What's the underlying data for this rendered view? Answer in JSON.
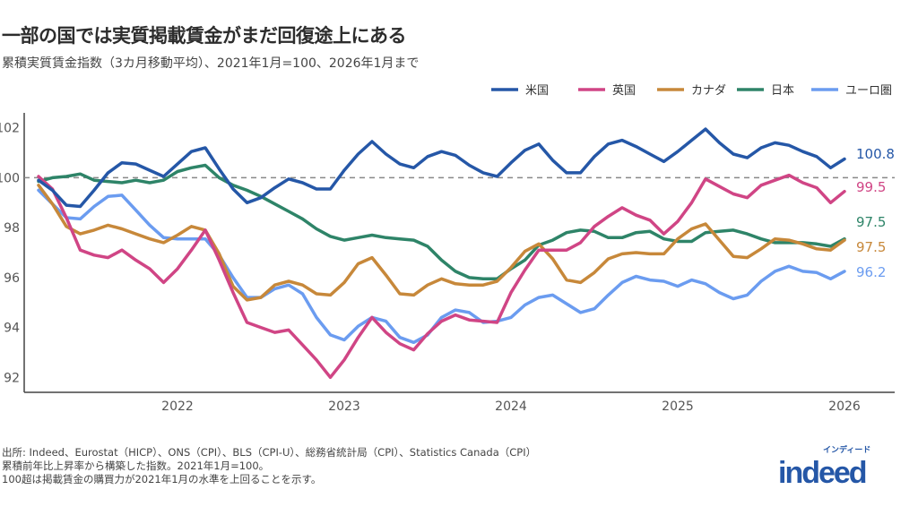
{
  "title": "一部の国では実質掲載賃金がまだ回復途上にある",
  "subtitle": "累積実質賃金指数（3カ月移動平均）、2021年1月=100、2026年1月まで",
  "notes": [
    "出所: Indeed、Eurostat（HICP）、ONS（CPI）、BLS（CPI-U）、総務省統計局（CPI）、Statistics Canada（CPI）",
    "累積前年比上昇率から構築した指数。2021年1月=100。",
    "100超は掲載賃金の購買力が2021年1月の水準を上回ることを示す。"
  ],
  "logo": {
    "word": "indeed",
    "kana": "インディード"
  },
  "chart_data": {
    "type": "line",
    "title": "一部の国では実質掲載賃金がまだ回復途上にある",
    "xlabel": "",
    "ylabel": "",
    "ylim": [
      91.4,
      102.6
    ],
    "xlim": [
      "2021-01",
      "2026-04"
    ],
    "yticks": [
      92,
      94,
      96,
      98,
      100,
      102
    ],
    "xticks": [
      {
        "label": "2022",
        "date": "2022-01"
      },
      {
        "label": "2023",
        "date": "2023-01"
      },
      {
        "label": "2024",
        "date": "2024-01"
      },
      {
        "label": "2025",
        "date": "2025-01"
      },
      {
        "label": "2026",
        "date": "2026-01"
      }
    ],
    "reference_line": {
      "y": 100,
      "style": "dashed",
      "color": "#888888"
    },
    "grid": false,
    "legend": "top-right",
    "x": [
      "2021-03",
      "2021-04",
      "2021-05",
      "2021-06",
      "2021-07",
      "2021-08",
      "2021-09",
      "2021-10",
      "2021-11",
      "2021-12",
      "2022-01",
      "2022-02",
      "2022-03",
      "2022-04",
      "2022-05",
      "2022-06",
      "2022-07",
      "2022-08",
      "2022-09",
      "2022-10",
      "2022-11",
      "2022-12",
      "2023-01",
      "2023-02",
      "2023-03",
      "2023-04",
      "2023-05",
      "2023-06",
      "2023-07",
      "2023-08",
      "2023-09",
      "2023-10",
      "2023-11",
      "2023-12",
      "2024-01",
      "2024-02",
      "2024-03",
      "2024-04",
      "2024-05",
      "2024-06",
      "2024-07",
      "2024-08",
      "2024-09",
      "2024-10",
      "2024-11",
      "2024-12",
      "2025-01",
      "2025-02",
      "2025-03",
      "2025-04",
      "2025-05",
      "2025-06",
      "2025-07",
      "2025-08",
      "2025-09",
      "2025-10",
      "2025-11",
      "2025-12",
      "2026-01"
    ],
    "series": [
      {
        "name": "米国",
        "color": "#2557a7",
        "end_label": "100.8",
        "values": [
          99.9,
          99.5,
          98.9,
          98.85,
          99.5,
          100.2,
          100.6,
          100.55,
          100.3,
          100.05,
          100.55,
          101.05,
          101.2,
          100.35,
          99.55,
          99.0,
          99.2,
          99.6,
          99.95,
          99.8,
          99.55,
          99.55,
          100.3,
          100.95,
          101.45,
          100.95,
          100.55,
          100.4,
          100.85,
          101.05,
          100.9,
          100.5,
          100.2,
          100.05,
          100.6,
          101.1,
          101.35,
          100.7,
          100.2,
          100.2,
          100.85,
          101.35,
          101.5,
          101.25,
          100.95,
          100.65,
          101.05,
          101.5,
          101.95,
          101.4,
          100.95,
          100.8,
          101.2,
          101.4,
          101.3,
          101.05,
          100.85,
          100.4,
          100.75
        ]
      },
      {
        "name": "英国",
        "color": "#d04585",
        "end_label": "99.5",
        "values": [
          100.05,
          99.55,
          98.4,
          97.1,
          96.9,
          96.8,
          97.1,
          96.7,
          96.35,
          95.8,
          96.35,
          97.1,
          97.9,
          96.7,
          95.4,
          94.2,
          94.0,
          93.8,
          93.9,
          93.3,
          92.7,
          92.0,
          92.7,
          93.6,
          94.4,
          93.8,
          93.35,
          93.1,
          93.75,
          94.25,
          94.5,
          94.3,
          94.25,
          94.2,
          95.4,
          96.3,
          97.1,
          97.1,
          97.1,
          97.4,
          98.05,
          98.45,
          98.8,
          98.5,
          98.3,
          97.75,
          98.25,
          99.0,
          99.95,
          99.65,
          99.35,
          99.2,
          99.7,
          99.9,
          100.1,
          99.8,
          99.6,
          99.0,
          99.45
        ]
      },
      {
        "name": "カナダ",
        "color": "#c7883a",
        "end_label": "97.5",
        "values": [
          99.7,
          98.95,
          98.05,
          97.75,
          97.9,
          98.1,
          97.95,
          97.75,
          97.55,
          97.4,
          97.7,
          98.05,
          97.9,
          96.95,
          95.65,
          95.1,
          95.2,
          95.7,
          95.85,
          95.7,
          95.35,
          95.3,
          95.8,
          96.55,
          96.8,
          96.1,
          95.35,
          95.3,
          95.7,
          95.95,
          95.75,
          95.7,
          95.7,
          95.85,
          96.4,
          97.05,
          97.35,
          96.75,
          95.9,
          95.8,
          96.2,
          96.75,
          96.95,
          97.0,
          96.95,
          96.95,
          97.55,
          97.95,
          98.15,
          97.5,
          96.85,
          96.8,
          97.15,
          97.55,
          97.5,
          97.35,
          97.15,
          97.1,
          97.5
        ]
      },
      {
        "name": "日本",
        "color": "#2e8468",
        "end_label": "97.5",
        "values": [
          99.85,
          100.0,
          100.05,
          100.15,
          99.9,
          99.85,
          99.8,
          99.9,
          99.8,
          99.9,
          100.25,
          100.4,
          100.5,
          100.0,
          99.7,
          99.5,
          99.25,
          98.95,
          98.65,
          98.35,
          97.95,
          97.65,
          97.5,
          97.6,
          97.7,
          97.6,
          97.55,
          97.5,
          97.25,
          96.7,
          96.25,
          96.0,
          95.95,
          95.95,
          96.35,
          96.7,
          97.3,
          97.5,
          97.8,
          97.9,
          97.85,
          97.6,
          97.6,
          97.8,
          97.85,
          97.55,
          97.45,
          97.45,
          97.8,
          97.85,
          97.9,
          97.75,
          97.55,
          97.4,
          97.4,
          97.4,
          97.35,
          97.25,
          97.55
        ]
      },
      {
        "name": "ユーロ圏",
        "color": "#6b9cf0",
        "end_label": "96.2",
        "values": [
          99.5,
          98.95,
          98.4,
          98.35,
          98.85,
          99.25,
          99.3,
          98.7,
          98.1,
          97.6,
          97.55,
          97.55,
          97.55,
          96.9,
          96.0,
          95.2,
          95.2,
          95.55,
          95.7,
          95.35,
          94.4,
          93.7,
          93.5,
          94.05,
          94.4,
          94.25,
          93.6,
          93.4,
          93.7,
          94.4,
          94.7,
          94.6,
          94.2,
          94.25,
          94.4,
          94.9,
          95.2,
          95.3,
          94.95,
          94.6,
          94.75,
          95.3,
          95.8,
          96.05,
          95.9,
          95.85,
          95.65,
          95.9,
          95.75,
          95.4,
          95.15,
          95.3,
          95.85,
          96.25,
          96.45,
          96.25,
          96.2,
          95.95,
          96.25
        ]
      }
    ]
  }
}
